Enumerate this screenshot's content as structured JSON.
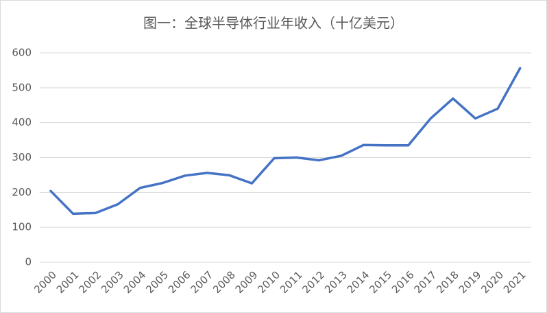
{
  "chart_data": {
    "type": "line",
    "title": "图一：全球半导体行业年收入（十亿美元）",
    "categories": [
      "2000",
      "2001",
      "2002",
      "2003",
      "2004",
      "2005",
      "2006",
      "2007",
      "2008",
      "2009",
      "2010",
      "2011",
      "2012",
      "2013",
      "2014",
      "2015",
      "2016",
      "2017",
      "2018",
      "2019",
      "2020",
      "2021"
    ],
    "values": [
      204,
      139,
      141,
      166,
      213,
      227,
      248,
      256,
      249,
      226,
      298,
      300,
      292,
      305,
      336,
      335,
      335,
      412,
      469,
      412,
      440,
      556
    ],
    "color": "#4472c4",
    "ylim": [
      0,
      600
    ],
    "yticks": [
      0,
      100,
      200,
      300,
      400,
      500,
      600
    ],
    "grid": true
  }
}
